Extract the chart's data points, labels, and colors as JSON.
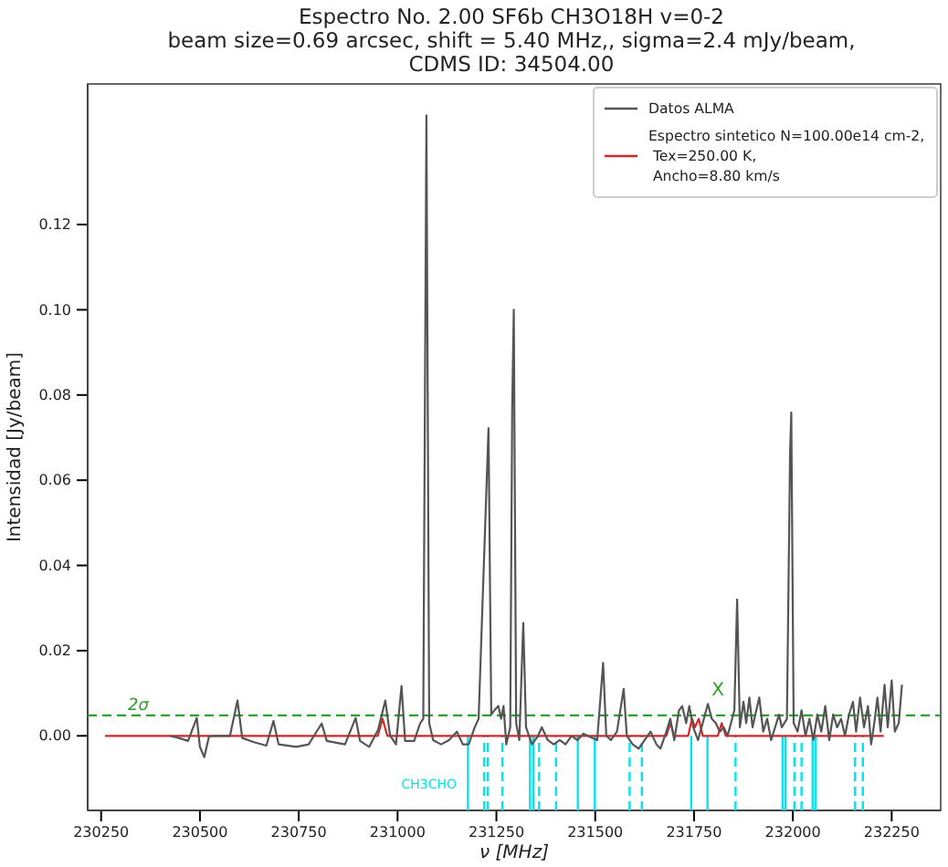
{
  "chart_data": {
    "type": "line",
    "title": "Espectro No. 2.00 SF6b CH3O18H v=0-2",
    "subtitle": "beam size=0.69 arcsec, shift = 5.40 MHz,, sigma=2.4 mJy/beam,\nCDMS ID: 34504.00",
    "xlabel": "ν [MHz]",
    "ylabel": "Intensidad [Jy/beam]",
    "xlim": [
      230216,
      232374
    ],
    "ylim": [
      -0.0175,
      0.153
    ],
    "xticks": [
      230250,
      230500,
      230750,
      231000,
      231250,
      231500,
      231750,
      232000,
      232250
    ],
    "yticks": [
      {
        "value": 0,
        "label": "0.00"
      },
      {
        "value": 0.02,
        "label": "0.02"
      },
      {
        "value": 0.04,
        "label": "0.04"
      },
      {
        "value": 0.06,
        "label": "0.06"
      },
      {
        "value": 0.08,
        "label": "0.08"
      },
      {
        "value": 0.1,
        "label": "0.10"
      },
      {
        "value": 0.12,
        "label": "0.12"
      }
    ],
    "grid": false,
    "legend": "top right",
    "marker": "none",
    "series": [
      {
        "name": "Espectro sintetico N=100.00e14 cm-2,\n Tex=250.00 K,\n Ancho=8.80 km/s",
        "color": "#d62728",
        "line_style": "solid",
        "x": [
          230260,
          230950,
          230962,
          230974,
          231680,
          231690,
          231700,
          231735,
          231745,
          231752,
          231762,
          231772,
          231810,
          231820,
          231830,
          232230
        ],
        "values": [
          0,
          0,
          0.004,
          0,
          0,
          0.003,
          0,
          0,
          0.004,
          0.002,
          0.004,
          0,
          0,
          0.003,
          0,
          0
        ]
      },
      {
        "name": "Datos ALMA",
        "color": "#555555",
        "line_style": "solid",
        "x": [
          230424,
          230447,
          230470,
          230492,
          230500,
          230511,
          230523,
          230538,
          230576,
          230595,
          230607,
          230637,
          230668,
          230686,
          230699,
          230744,
          230775,
          230808,
          230821,
          230867,
          230894,
          230905,
          230928,
          230951,
          230969,
          230981,
          230996,
          231010,
          231019,
          231042,
          231057,
          231065,
          231073,
          231080,
          231090,
          231110,
          231130,
          231150,
          231165,
          231180,
          231195,
          231205,
          231230,
          231237,
          231245,
          231255,
          231262,
          231268,
          231275,
          231285,
          231290,
          231294,
          231300,
          231308,
          231318,
          231325,
          231340,
          231355,
          231365,
          231380,
          231395,
          231410,
          231425,
          231440,
          231455,
          231470,
          231505,
          231520,
          231528,
          231540,
          231555,
          231572,
          231580,
          231595,
          231610,
          231625,
          231640,
          231655,
          231665,
          231680,
          231690,
          231700,
          231712,
          231720,
          231730,
          231738,
          231748,
          231760,
          231772,
          231785,
          231795,
          231805,
          231815,
          231825,
          231835,
          231852,
          231859,
          231866,
          231875,
          231882,
          231890,
          231898,
          231905,
          231915,
          231925,
          231935,
          231945,
          231955,
          231965,
          231972,
          231985,
          231993,
          231996,
          232002,
          232012,
          232022,
          232032,
          232042,
          232052,
          232062,
          232072,
          232082,
          232092,
          232102,
          232112,
          232122,
          232132,
          232142,
          232152,
          232160,
          232170,
          232180,
          232190,
          232198,
          232206,
          232214,
          232222,
          232232,
          232240,
          232250,
          232258,
          232268,
          232276
        ],
        "values": [
          0,
          -0.0005,
          -0.0012,
          0.0042,
          -0.0026,
          -0.005,
          -0.0001,
          0,
          0,
          0.0083,
          -0.0005,
          -0.0015,
          -0.0023,
          0.0035,
          -0.002,
          -0.0026,
          -0.002,
          0.0029,
          -0.0012,
          -0.002,
          0.0042,
          -0.0012,
          -0.0026,
          0.0015,
          0.0083,
          0.0001,
          -0.002,
          0.0117,
          -0.0012,
          -0.0012,
          0.0029,
          0.004,
          0.1456,
          0.003,
          -0.001,
          -0.002,
          -0.001,
          0.001,
          -0.002,
          -0.002,
          0.002,
          0.004,
          0.0722,
          0.005,
          0.006,
          0.007,
          0.004,
          0.007,
          -0.002,
          0.002,
          0.077,
          0.1,
          0.003,
          -0.001,
          0.0265,
          0.002,
          -0.002,
          0,
          0.002,
          -0.001,
          -0.002,
          -0.001,
          -0.002,
          0,
          -0.001,
          0.0005,
          -0.001,
          0.0171,
          0,
          -0.001,
          0.001,
          0.011,
          0,
          -0.002,
          -0.003,
          -0.001,
          0.001,
          -0.002,
          -0.003,
          0.001,
          0.004,
          -0.001,
          0.006,
          0.007,
          0.003,
          0.007,
          0.002,
          -0.001,
          0.003,
          0.0075,
          0.004,
          0.003,
          0.001,
          0.002,
          0,
          0.006,
          0.032,
          0.002,
          0.008,
          0.003,
          0.009,
          0.002,
          0.005,
          0.009,
          0.001,
          0.004,
          -0.001,
          0.002,
          0.005,
          0.002,
          0.004,
          0.0667,
          0.0759,
          0.003,
          0.001,
          0.006,
          0,
          0.004,
          -0.001,
          0.005,
          0.001,
          0.007,
          -0.001,
          0.005,
          0.002,
          0.004,
          0,
          0.005,
          0.008,
          0.001,
          0.009,
          0.002,
          0.007,
          -0.002,
          0.003,
          0.009,
          0.001,
          0.012,
          0.002,
          0.013,
          0.001,
          0.003,
          0.012
        ]
      }
    ],
    "ref_lines": [
      {
        "axis": "y",
        "value": 0.0048,
        "label": "2σ",
        "color": "#2ca02c",
        "line_style": "dashed"
      },
      {
        "axis": "x",
        "value": 231178,
        "color": "#00e5ee",
        "line_style": "solid"
      },
      {
        "axis": "x",
        "value": 231219,
        "color": "#00e5ee",
        "line_style": "dashed"
      },
      {
        "axis": "x",
        "value": 231228,
        "color": "#00e5ee",
        "line_style": "dashed"
      },
      {
        "axis": "x",
        "value": 231265,
        "color": "#00e5ee",
        "line_style": "dashed"
      },
      {
        "axis": "x",
        "value": 231335,
        "color": "#00e5ee",
        "line_style": "solid"
      },
      {
        "axis": "x",
        "value": 231343,
        "color": "#00e5ee",
        "line_style": "solid"
      },
      {
        "axis": "x",
        "value": 231358,
        "color": "#00e5ee",
        "line_style": "dashed"
      },
      {
        "axis": "x",
        "value": 231401,
        "color": "#00e5ee",
        "line_style": "dashed"
      },
      {
        "axis": "x",
        "value": 231456,
        "color": "#00e5ee",
        "line_style": "solid"
      },
      {
        "axis": "x",
        "value": 231499,
        "color": "#00e5ee",
        "line_style": "solid"
      },
      {
        "axis": "x",
        "value": 231587,
        "color": "#00e5ee",
        "line_style": "dashed"
      },
      {
        "axis": "x",
        "value": 231618,
        "color": "#00e5ee",
        "line_style": "dashed"
      },
      {
        "axis": "x",
        "value": 231743,
        "color": "#00e5ee",
        "line_style": "solid"
      },
      {
        "axis": "x",
        "value": 231784,
        "color": "#00e5ee",
        "line_style": "solid"
      },
      {
        "axis": "x",
        "value": 231855,
        "color": "#00e5ee",
        "line_style": "dashed"
      },
      {
        "axis": "x",
        "value": 231974,
        "color": "#00e5ee",
        "line_style": "solid"
      },
      {
        "axis": "x",
        "value": 231981,
        "color": "#00e5ee",
        "line_style": "solid"
      },
      {
        "axis": "x",
        "value": 232004,
        "color": "#00e5ee",
        "line_style": "dashed"
      },
      {
        "axis": "x",
        "value": 232022,
        "color": "#00e5ee",
        "line_style": "dashed"
      },
      {
        "axis": "x",
        "value": 232050,
        "color": "#00e5ee",
        "line_style": "solid"
      },
      {
        "axis": "x",
        "value": 232058,
        "color": "#00e5ee",
        "line_style": "solid"
      },
      {
        "axis": "x",
        "value": 232157,
        "color": "#00e5ee",
        "line_style": "dashed"
      },
      {
        "axis": "x",
        "value": 232177,
        "color": "#00e5ee",
        "line_style": "dashed"
      }
    ],
    "annotations": [
      "CH3CHO",
      "X"
    ]
  }
}
